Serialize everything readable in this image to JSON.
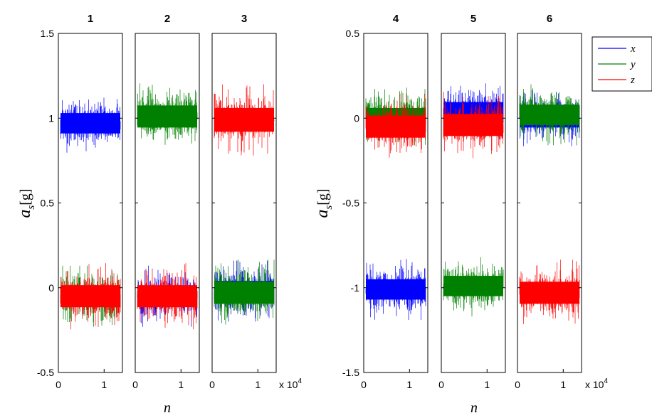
{
  "chart_data": [
    {
      "type": "scatter",
      "description_group": "left",
      "ylabel": "a_s[g]",
      "ylabel_main": "a",
      "ylabel_sub": "s",
      "ylabel_unit": "[g]",
      "xlabel": "n",
      "ylim": [
        -0.5,
        1.5
      ],
      "yticks": [
        "1.5",
        "1",
        "0.5",
        "0",
        "-0.5"
      ],
      "ytick_values": [
        1.5,
        1,
        0.5,
        0,
        -0.5
      ],
      "xlim": [
        0,
        1.4
      ],
      "xticks": [
        "0",
        "1"
      ],
      "xtick_values": [
        0,
        1
      ],
      "x_multiplier": "x 10",
      "x_multiplier_exp": "4",
      "panels": [
        {
          "title": "1",
          "series": [
            {
              "name": "x",
              "mean": 0.97,
              "noise": 0.12
            },
            {
              "name": "y",
              "mean": -0.05,
              "noise": 0.12
            },
            {
              "name": "z",
              "mean": -0.05,
              "noise": 0.13
            }
          ]
        },
        {
          "title": "2",
          "series": [
            {
              "name": "x",
              "mean": -0.05,
              "noise": 0.12
            },
            {
              "name": "y",
              "mean": 1.01,
              "noise": 0.13
            },
            {
              "name": "z",
              "mean": -0.05,
              "noise": 0.13
            }
          ]
        },
        {
          "title": "3",
          "series": [
            {
              "name": "x",
              "mean": -0.02,
              "noise": 0.12
            },
            {
              "name": "z",
              "mean": 0.99,
              "noise": 0.14
            },
            {
              "name": "y",
              "mean": -0.03,
              "noise": 0.13
            }
          ]
        }
      ]
    },
    {
      "type": "scatter",
      "description_group": "right",
      "ylabel": "a_s[g]",
      "ylabel_main": "a",
      "ylabel_sub": "s",
      "ylabel_unit": "[g]",
      "xlabel": "n",
      "ylim": [
        -1.5,
        0.5
      ],
      "yticks": [
        "0.5",
        "0",
        "-0.5",
        "-1",
        "-1.5"
      ],
      "ytick_values": [
        0.5,
        0,
        -0.5,
        -1,
        -1.5
      ],
      "xlim": [
        0,
        1.4
      ],
      "xticks": [
        "0",
        "1"
      ],
      "xtick_values": [
        0,
        1
      ],
      "x_multiplier": "x 10",
      "x_multiplier_exp": "4",
      "panels": [
        {
          "title": "4",
          "series": [
            {
              "name": "y",
              "mean": 0.0,
              "noise": 0.12
            },
            {
              "name": "z",
              "mean": -0.05,
              "noise": 0.13
            },
            {
              "name": "x",
              "mean": -1.01,
              "noise": 0.12
            }
          ]
        },
        {
          "title": "5",
          "series": [
            {
              "name": "x",
              "mean": 0.04,
              "noise": 0.11
            },
            {
              "name": "z",
              "mean": -0.04,
              "noise": 0.13
            },
            {
              "name": "y",
              "mean": -0.99,
              "noise": 0.12
            }
          ]
        },
        {
          "title": "6",
          "series": [
            {
              "name": "x",
              "mean": 0.0,
              "noise": 0.11
            },
            {
              "name": "y",
              "mean": 0.02,
              "noise": 0.12
            },
            {
              "name": "z",
              "mean": -1.03,
              "noise": 0.13
            }
          ]
        }
      ]
    }
  ],
  "legend": {
    "placement": "top-right",
    "entries": [
      {
        "name": "x",
        "color": "#0000ff"
      },
      {
        "name": "y",
        "color": "#008000"
      },
      {
        "name": "z",
        "color": "#ff0000"
      }
    ]
  },
  "colors": {
    "x": "#0000ff",
    "y": "#008000",
    "z": "#ff0000"
  }
}
